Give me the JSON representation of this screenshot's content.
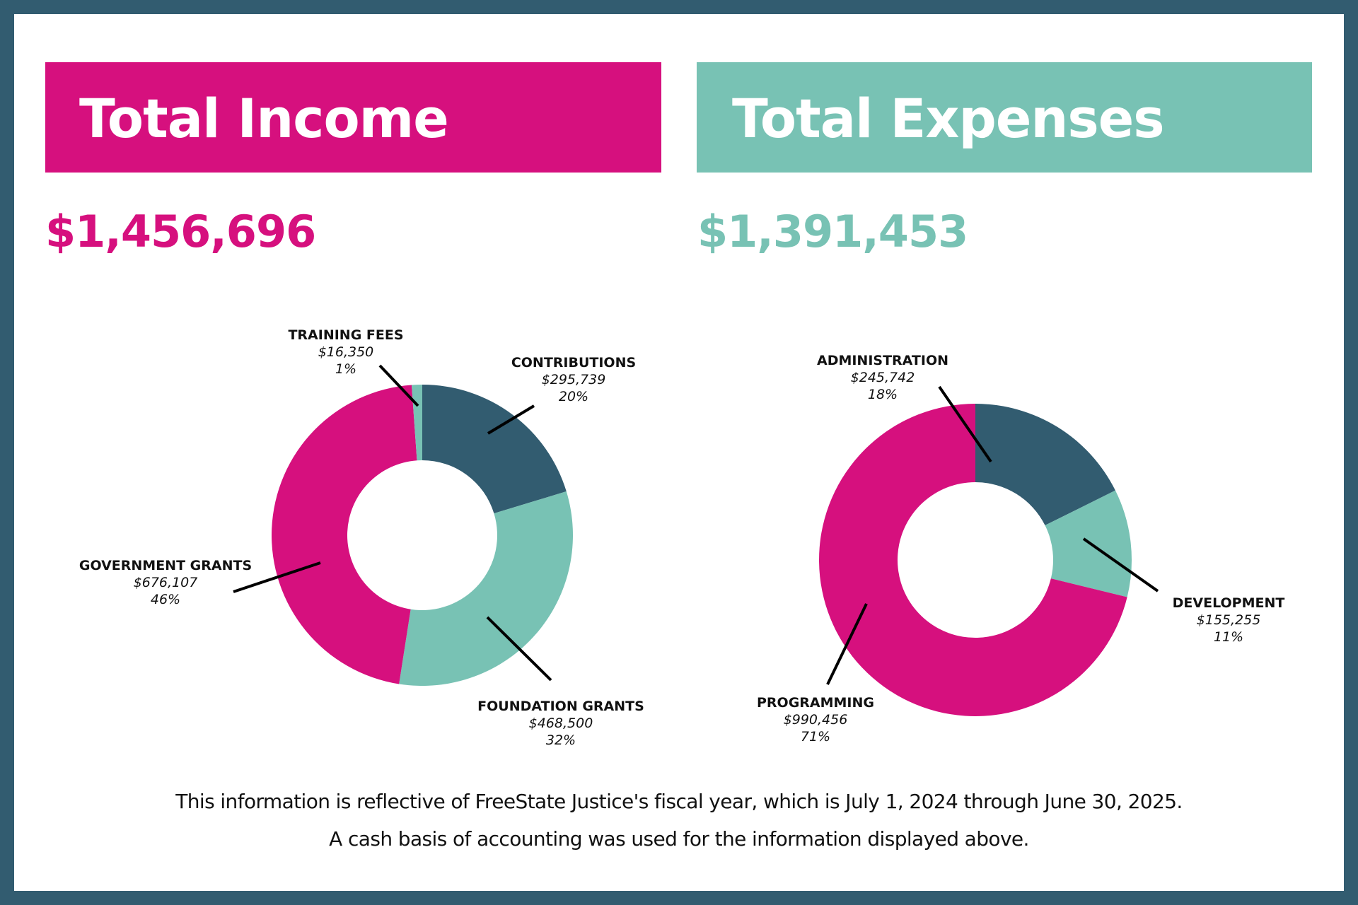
{
  "colors": {
    "frame": "#325c70",
    "pink": "#d6107e",
    "teal": "#78c2b4",
    "navy": "#325c70",
    "leader": "#000000"
  },
  "income": {
    "title": "Total Income",
    "total": "$1,456,696"
  },
  "expenses": {
    "title": "Total Expenses",
    "total": "$1,391,453"
  },
  "chart_data": [
    {
      "type": "pie",
      "variant": "donut",
      "title": "Total Income",
      "start": "top",
      "direction": "clockwise",
      "slices": [
        {
          "label": "CONTRIBUTIONS",
          "value": 295739,
          "value_label": "$295,739",
          "percent_label": "20%",
          "color": "#325c70"
        },
        {
          "label": "FOUNDATION GRANTS",
          "value": 468500,
          "value_label": "$468,500",
          "percent_label": "32%",
          "color": "#78c2b4"
        },
        {
          "label": "GOVERNMENT GRANTS",
          "value": 676107,
          "value_label": "$676,107",
          "percent_label": "46%",
          "color": "#d6107e"
        },
        {
          "label": "TRAINING FEES",
          "value": 16350,
          "value_label": "$16,350",
          "percent_label": "1%",
          "color": "#78c2b4"
        }
      ]
    },
    {
      "type": "pie",
      "variant": "donut",
      "title": "Total Expenses",
      "start": "top",
      "direction": "clockwise",
      "slices": [
        {
          "label": "ADMINISTRATION",
          "value": 245742,
          "value_label": "$245,742",
          "percent_label": "18%",
          "color": "#325c70"
        },
        {
          "label": "DEVELOPMENT",
          "value": 155255,
          "value_label": "$155,255",
          "percent_label": "11%",
          "color": "#78c2b4"
        },
        {
          "label": "PROGRAMMING",
          "value": 990456,
          "value_label": "$990,456",
          "percent_label": "71%",
          "color": "#d6107e"
        }
      ]
    }
  ],
  "footer": {
    "line1": "This information is reflective of FreeState Justice's fiscal year, which is July 1, 2024 through June 30, 2025.",
    "line2": "A cash basis of accounting was used for the information displayed above."
  }
}
